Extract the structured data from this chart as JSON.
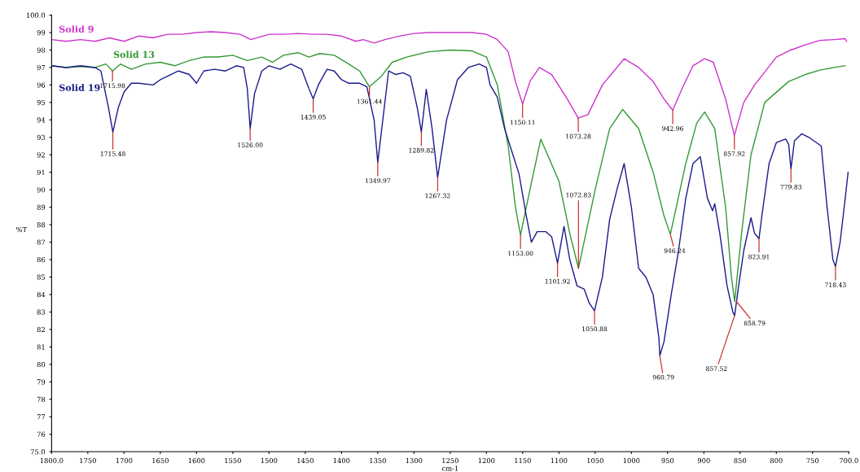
{
  "chart_data": {
    "type": "line",
    "xlabel": "cm-1",
    "ylabel": "%T",
    "xlim": [
      1800,
      700
    ],
    "ylim": [
      75,
      100
    ],
    "xticks": [
      {
        "value": 1800,
        "label": "1800.0"
      },
      1750,
      1700,
      1650,
      1600,
      1550,
      1500,
      1450,
      1400,
      1350,
      1300,
      1250,
      1200,
      1150,
      1100,
      1050,
      1000,
      950,
      900,
      850,
      800,
      750,
      {
        "value": 700,
        "label": "700.0"
      }
    ],
    "yticks": [
      {
        "value": 75,
        "label": "75.0"
      },
      76,
      77,
      78,
      79,
      80,
      81,
      82,
      83,
      84,
      85,
      86,
      87,
      88,
      89,
      90,
      91,
      92,
      93,
      94,
      95,
      96,
      97,
      98,
      99,
      {
        "value": 100,
        "label": "100.0"
      }
    ],
    "grid": false,
    "legend": false,
    "marker": "none",
    "line_style": "solid",
    "series": [
      {
        "name": "Solid 9",
        "color": "#cc33cc",
        "x": [
          1800,
          1780,
          1760,
          1740,
          1720,
          1700,
          1680,
          1660,
          1640,
          1620,
          1600,
          1580,
          1560,
          1540,
          1525,
          1500,
          1480,
          1460,
          1440,
          1420,
          1400,
          1380,
          1370,
          1355,
          1340,
          1320,
          1300,
          1280,
          1250,
          1220,
          1200,
          1185,
          1170,
          1160,
          1150.11,
          1140,
          1127,
          1110,
          1090,
          1073.28,
          1060,
          1040,
          1010,
          990,
          970,
          955,
          942.96,
          930,
          915,
          899,
          887,
          870,
          857.92,
          845,
          830,
          800,
          780,
          760,
          740,
          720,
          705,
          703
        ],
        "values": [
          98.6,
          98.5,
          98.6,
          98.5,
          98.7,
          98.5,
          98.8,
          98.7,
          98.9,
          98.9,
          99.0,
          99.05,
          99.0,
          98.9,
          98.6,
          98.9,
          98.9,
          98.95,
          98.9,
          98.9,
          98.8,
          98.5,
          98.6,
          98.4,
          98.6,
          98.8,
          98.95,
          99.0,
          99.0,
          99.0,
          98.9,
          98.6,
          97.9,
          96.2,
          94.9,
          96.2,
          97.0,
          96.6,
          95.3,
          94.1,
          94.3,
          96.0,
          97.5,
          97.0,
          96.2,
          95.2,
          94.55,
          95.8,
          97.1,
          97.5,
          97.3,
          95.2,
          93.1,
          95.0,
          96.0,
          97.6,
          98.0,
          98.3,
          98.55,
          98.6,
          98.65,
          98.5
        ]
      },
      {
        "name": "Solid 13",
        "color": "#339933",
        "x": [
          1800,
          1780,
          1760,
          1740,
          1725,
          1715.98,
          1705,
          1690,
          1670,
          1650,
          1630,
          1610,
          1590,
          1570,
          1550,
          1530,
          1510,
          1495,
          1480,
          1460,
          1445,
          1430,
          1410,
          1390,
          1375,
          1361.44,
          1345,
          1330,
          1310,
          1280,
          1250,
          1220,
          1200,
          1185,
          1170,
          1160,
          1153,
          1140,
          1125,
          1100,
          1085,
          1073,
          1050,
          1030,
          1012,
          990,
          970,
          955,
          946.24,
          925,
          910,
          899,
          885,
          870,
          862,
          857.52,
          848,
          835,
          816,
          783,
          760,
          740,
          720,
          705
        ],
        "values": [
          97.1,
          97.0,
          97.05,
          97.0,
          97.2,
          96.8,
          97.2,
          96.9,
          97.2,
          97.3,
          97.1,
          97.4,
          97.6,
          97.6,
          97.7,
          97.4,
          97.6,
          97.3,
          97.7,
          97.85,
          97.6,
          97.8,
          97.7,
          97.2,
          96.8,
          95.9,
          96.5,
          97.3,
          97.6,
          97.9,
          98.0,
          97.95,
          97.6,
          96.0,
          92.5,
          89.0,
          87.4,
          90.0,
          92.9,
          90.5,
          87.5,
          85.5,
          90.0,
          93.5,
          94.6,
          93.5,
          91.0,
          88.5,
          87.45,
          91.5,
          93.8,
          94.45,
          93.5,
          89.0,
          85.0,
          83.6,
          87.5,
          92.0,
          95.0,
          96.2,
          96.6,
          96.85,
          97.0,
          97.1
        ]
      },
      {
        "name": "Solid 19",
        "color": "#1a1a8c",
        "x": [
          1800,
          1780,
          1760,
          1740,
          1732,
          1728,
          1722,
          1715.48,
          1708,
          1700,
          1690,
          1680,
          1660,
          1650,
          1640,
          1625,
          1610,
          1600,
          1590,
          1575,
          1560,
          1545,
          1535,
          1530,
          1526,
          1520,
          1510,
          1500,
          1485,
          1470,
          1455,
          1445,
          1439.05,
          1432,
          1420,
          1410,
          1400,
          1390,
          1375,
          1365,
          1355,
          1349.97,
          1343,
          1335,
          1325,
          1315,
          1305,
          1295,
          1289.82,
          1283,
          1275,
          1267.32,
          1255,
          1240,
          1225,
          1210,
          1200,
          1195,
          1185,
          1175,
          1165,
          1155,
          1145,
          1138,
          1130,
          1118,
          1110,
          1101.92,
          1093,
          1085,
          1075,
          1065,
          1058,
          1050.88,
          1040,
          1030,
          1020,
          1010,
          1000,
          990,
          980,
          970,
          962,
          960.79,
          955,
          945,
          935,
          925,
          915,
          905,
          895,
          888,
          885,
          878,
          868,
          860,
          857.52,
          852,
          845,
          835,
          830,
          823.91,
          820,
          810,
          800,
          787,
          783,
          779.83,
          775,
          765,
          755,
          738,
          730,
          722,
          718.43,
          712,
          705,
          701
        ],
        "values": [
          97.1,
          97.0,
          97.1,
          97.0,
          96.8,
          96.0,
          94.8,
          93.3,
          94.7,
          95.6,
          96.1,
          96.1,
          96.0,
          96.3,
          96.5,
          96.8,
          96.6,
          96.1,
          96.8,
          96.9,
          96.8,
          97.1,
          97.0,
          95.8,
          93.5,
          95.5,
          96.8,
          97.1,
          96.9,
          97.2,
          96.9,
          95.8,
          95.2,
          96.0,
          96.9,
          96.8,
          96.3,
          96.1,
          96.1,
          95.9,
          94.0,
          91.56,
          94.0,
          96.8,
          96.6,
          96.7,
          96.5,
          94.6,
          93.3,
          95.75,
          93.5,
          90.7,
          94.0,
          96.3,
          97.0,
          97.2,
          97.0,
          96.0,
          95.3,
          93.5,
          92.2,
          90.9,
          88.5,
          87.0,
          87.6,
          87.6,
          87.3,
          85.8,
          87.9,
          86.0,
          84.5,
          84.3,
          83.5,
          83.07,
          85.0,
          88.3,
          90.0,
          91.5,
          89.0,
          85.5,
          85.0,
          84.0,
          81.5,
          80.5,
          81.3,
          84.0,
          86.5,
          89.5,
          91.5,
          91.9,
          89.5,
          88.8,
          89.2,
          87.5,
          84.5,
          83.0,
          82.8,
          84.5,
          86.5,
          88.4,
          87.5,
          87.2,
          88.5,
          91.5,
          92.7,
          92.9,
          92.6,
          91.2,
          92.8,
          93.2,
          93.0,
          92.5,
          89.0,
          86.0,
          85.6,
          87.0,
          89.5,
          91.0
        ]
      }
    ],
    "annotations": [
      {
        "text": "1715.98",
        "x": 1715.98,
        "y": 96.8
      },
      {
        "text": "1715.48",
        "x": 1715.48,
        "y": 93.3
      },
      {
        "text": "1526.00",
        "x": 1526,
        "y": 93.5
      },
      {
        "text": "1439.05",
        "x": 1439.05,
        "y": 95.2
      },
      {
        "text": "1361.44",
        "x": 1361.44,
        "y": 95.9
      },
      {
        "text": "1349.97",
        "x": 1349.97,
        "y": 91.56
      },
      {
        "text": "1289.82",
        "x": 1289.82,
        "y": 93.3
      },
      {
        "text": "1267.32",
        "x": 1267.32,
        "y": 90.7
      },
      {
        "text": "1150.11",
        "x": 1150.11,
        "y": 94.9
      },
      {
        "text": "1073.28",
        "x": 1073.28,
        "y": 94.1
      },
      {
        "text": "942.96",
        "x": 942.96,
        "y": 94.55
      },
      {
        "text": "857.92",
        "x": 857.92,
        "y": 93.1
      },
      {
        "text": "1153.00",
        "x": 1153,
        "y": 87.4
      },
      {
        "text": "1101.92",
        "x": 1101.92,
        "y": 85.8
      },
      {
        "text": "1072.83",
        "x": 1073,
        "y": 85.5
      },
      {
        "text": "1050.88",
        "x": 1050.88,
        "y": 83.07
      },
      {
        "text": "960.79",
        "x": 960.79,
        "y": 80.5
      },
      {
        "text": "946.24",
        "x": 946.24,
        "y": 87.45
      },
      {
        "text": "857.52",
        "x": 857.52,
        "y": 82.8
      },
      {
        "text": "858.79",
        "x": 855,
        "y": 83.6
      },
      {
        "text": "823.91",
        "x": 823.91,
        "y": 87.2
      },
      {
        "text": "779.83",
        "x": 779.83,
        "y": 91.2
      },
      {
        "text": "718.43",
        "x": 718.43,
        "y": 85.6
      }
    ]
  }
}
